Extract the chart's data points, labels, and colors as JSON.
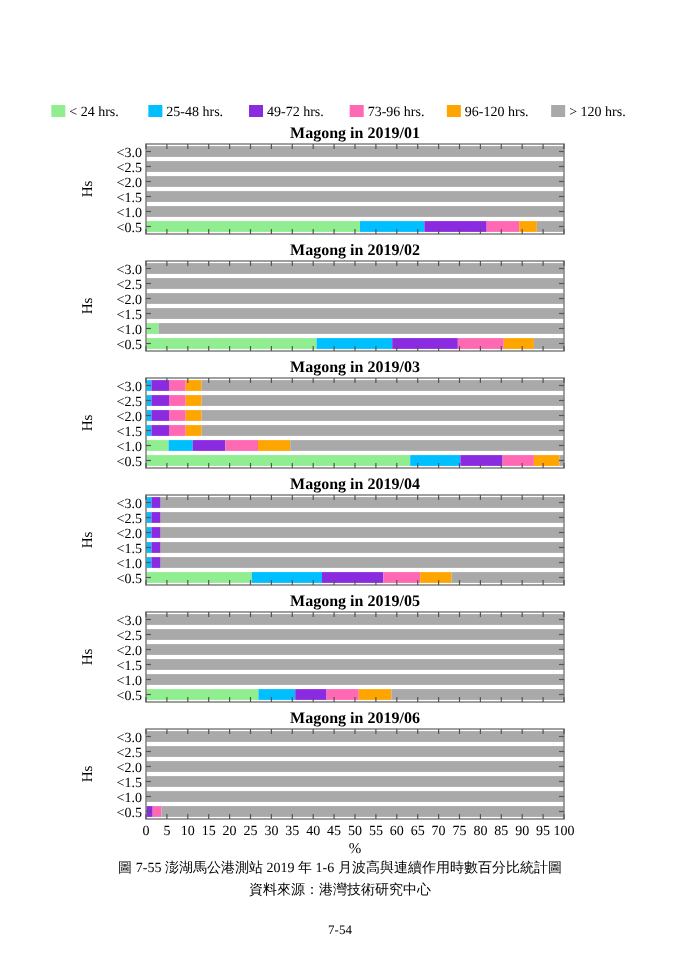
{
  "chart_data": [
    {
      "type": "bar",
      "title": "Magong in 2019/01",
      "ylabel": "Hs",
      "orientation": "horizontal",
      "stacked": true,
      "legend": "top",
      "tick_labels": "y",
      "xlim": [
        0,
        100
      ],
      "xticks": [
        0,
        5,
        10,
        15,
        20,
        25,
        30,
        35,
        40,
        45,
        50,
        55,
        60,
        65,
        70,
        75,
        80,
        85,
        90,
        95,
        100
      ],
      "categories": [
        "<3.0",
        "<2.5",
        "<2.0",
        "<1.5",
        "<1.0",
        "<0.5"
      ],
      "series": [
        {
          "name": "< 24 hrs.",
          "color": "#90ee90",
          "values": [
            0,
            0,
            0,
            0,
            0,
            51.2
          ]
        },
        {
          "name": "25-48 hrs.",
          "color": "#00bfff",
          "values": [
            0,
            0,
            0,
            0,
            0,
            15.4
          ]
        },
        {
          "name": "49-72 hrs.",
          "color": "#8a2be2",
          "values": [
            0,
            0,
            0,
            0,
            0,
            14.9
          ]
        },
        {
          "name": "73-96 hrs.",
          "color": "#ff69b4",
          "values": [
            0,
            0,
            0,
            0,
            0,
            7.8
          ]
        },
        {
          "name": "96-120 hrs.",
          "color": "#ffa500",
          "values": [
            0,
            0,
            0,
            0,
            0,
            4.2
          ]
        },
        {
          "name": "> 120 hrs.",
          "color": "#a9a9a9",
          "values": [
            100,
            100,
            100,
            100,
            100,
            6.5
          ]
        }
      ]
    },
    {
      "type": "bar",
      "title": "Magong in 2019/02",
      "ylabel": "Hs",
      "orientation": "horizontal",
      "stacked": true,
      "tick_labels": "y",
      "xlim": [
        0,
        100
      ],
      "xticks": [
        0,
        5,
        10,
        15,
        20,
        25,
        30,
        35,
        40,
        45,
        50,
        55,
        60,
        65,
        70,
        75,
        80,
        85,
        90,
        95,
        100
      ],
      "categories": [
        "<3.0",
        "<2.5",
        "<2.0",
        "<1.5",
        "<1.0",
        "<0.5"
      ],
      "series": [
        {
          "color": "#90ee90",
          "values": [
            0,
            0,
            0,
            0,
            3,
            40.8
          ]
        },
        {
          "color": "#00bfff",
          "values": [
            0,
            0,
            0,
            0,
            0,
            18.1
          ]
        },
        {
          "color": "#8a2be2",
          "values": [
            0,
            0,
            0,
            0,
            0,
            15.7
          ]
        },
        {
          "color": "#ff69b4",
          "values": [
            0,
            0,
            0,
            0,
            0,
            11.0
          ]
        },
        {
          "color": "#ffa500",
          "values": [
            0,
            0,
            0,
            0,
            0,
            7.2
          ]
        },
        {
          "color": "#a9a9a9",
          "values": [
            100,
            100,
            100,
            100,
            97,
            7.2
          ]
        }
      ]
    },
    {
      "type": "bar",
      "title": "Magong in 2019/03",
      "ylabel": "Hs",
      "orientation": "horizontal",
      "stacked": true,
      "tick_labels": "y",
      "xlim": [
        0,
        100
      ],
      "xticks": [
        0,
        5,
        10,
        15,
        20,
        25,
        30,
        35,
        40,
        45,
        50,
        55,
        60,
        65,
        70,
        75,
        80,
        85,
        90,
        95,
        100
      ],
      "categories": [
        "<3.0",
        "<2.5",
        "<2.0",
        "<1.5",
        "<1.0",
        "<0.5"
      ],
      "series": [
        {
          "color": "#90ee90",
          "values": [
            0,
            0,
            0,
            0,
            5.4,
            63.2
          ]
        },
        {
          "color": "#00bfff",
          "values": [
            1.3,
            1.3,
            1.3,
            1.3,
            5.8,
            12.0
          ]
        },
        {
          "color": "#8a2be2",
          "values": [
            4.2,
            4.2,
            4.2,
            4.2,
            7.8,
            10.1
          ]
        },
        {
          "color": "#ff69b4",
          "values": [
            4.0,
            4.0,
            4.0,
            4.0,
            7.8,
            7.5
          ]
        },
        {
          "color": "#ffa500",
          "values": [
            3.8,
            3.8,
            3.8,
            3.8,
            7.7,
            6.1
          ]
        },
        {
          "color": "#a9a9a9",
          "values": [
            86.7,
            86.7,
            86.7,
            86.7,
            65.5,
            1.1
          ]
        }
      ]
    },
    {
      "type": "bar",
      "title": "Magong in 2019/04",
      "ylabel": "Hs",
      "orientation": "horizontal",
      "stacked": true,
      "tick_labels": "y",
      "xlim": [
        0,
        100
      ],
      "xticks": [
        0,
        5,
        10,
        15,
        20,
        25,
        30,
        35,
        40,
        45,
        50,
        55,
        60,
        65,
        70,
        75,
        80,
        85,
        90,
        95,
        100
      ],
      "categories": [
        "<3.0",
        "<2.5",
        "<2.0",
        "<1.5",
        "<1.0",
        "<0.5"
      ],
      "series": [
        {
          "color": "#90ee90",
          "values": [
            0,
            0,
            0,
            0,
            0,
            25.3
          ]
        },
        {
          "color": "#00bfff",
          "values": [
            1.3,
            1.3,
            1.3,
            1.3,
            1.3,
            16.8
          ]
        },
        {
          "color": "#8a2be2",
          "values": [
            2.2,
            2.2,
            2.2,
            2.2,
            2.2,
            14.7
          ]
        },
        {
          "color": "#ff69b4",
          "values": [
            0,
            0,
            0,
            0,
            0,
            8.8
          ]
        },
        {
          "color": "#ffa500",
          "values": [
            0,
            0,
            0,
            0,
            0,
            7.5
          ]
        },
        {
          "color": "#a9a9a9",
          "values": [
            96.5,
            96.5,
            96.5,
            96.5,
            96.5,
            26.9
          ]
        }
      ]
    },
    {
      "type": "bar",
      "title": "Magong in 2019/05",
      "ylabel": "Hs",
      "orientation": "horizontal",
      "stacked": true,
      "tick_labels": "y",
      "xlim": [
        0,
        100
      ],
      "xticks": [
        0,
        5,
        10,
        15,
        20,
        25,
        30,
        35,
        40,
        45,
        50,
        55,
        60,
        65,
        70,
        75,
        80,
        85,
        90,
        95,
        100
      ],
      "categories": [
        "<3.0",
        "<2.5",
        "<2.0",
        "<1.5",
        "<1.0",
        "<0.5"
      ],
      "series": [
        {
          "color": "#90ee90",
          "values": [
            0,
            0,
            0,
            0,
            0,
            26.9
          ]
        },
        {
          "color": "#00bfff",
          "values": [
            0,
            0,
            0,
            0,
            0,
            8.8
          ]
        },
        {
          "color": "#8a2be2",
          "values": [
            0,
            0,
            0,
            0,
            0,
            7.5
          ]
        },
        {
          "color": "#ff69b4",
          "values": [
            0,
            0,
            0,
            0,
            0,
            7.7
          ]
        },
        {
          "color": "#ffa500",
          "values": [
            0,
            0,
            0,
            0,
            0,
            7.8
          ]
        },
        {
          "color": "#a9a9a9",
          "values": [
            100,
            100,
            100,
            100,
            100,
            41.3
          ]
        }
      ]
    },
    {
      "type": "bar",
      "title": "Magong in 2019/06",
      "ylabel": "Hs",
      "xlabel": "%",
      "orientation": "horizontal",
      "stacked": true,
      "xlim": [
        0,
        100
      ],
      "xticks": [
        0,
        5,
        10,
        15,
        20,
        25,
        30,
        35,
        40,
        45,
        50,
        55,
        60,
        65,
        70,
        75,
        80,
        85,
        90,
        95,
        100
      ],
      "categories": [
        "<3.0",
        "<2.5",
        "<2.0",
        "<1.5",
        "<1.0",
        "<0.5"
      ],
      "series": [
        {
          "color": "#8a2be2",
          "values": [
            0,
            0,
            0,
            0,
            0,
            1.6
          ]
        },
        {
          "color": "#ff69b4",
          "values": [
            0,
            0,
            0,
            0,
            0,
            2.1
          ]
        },
        {
          "color": "#a9a9a9",
          "values": [
            100,
            100,
            100,
            100,
            100,
            96.3
          ]
        }
      ],
      "annotations": [
        "圖 7-55 澎湖馬公港測站 2019 年 1-6 月波高與連續作用時數百分比統計圖",
        "資料來源：港灣技術研究中心",
        "7-54"
      ]
    }
  ]
}
